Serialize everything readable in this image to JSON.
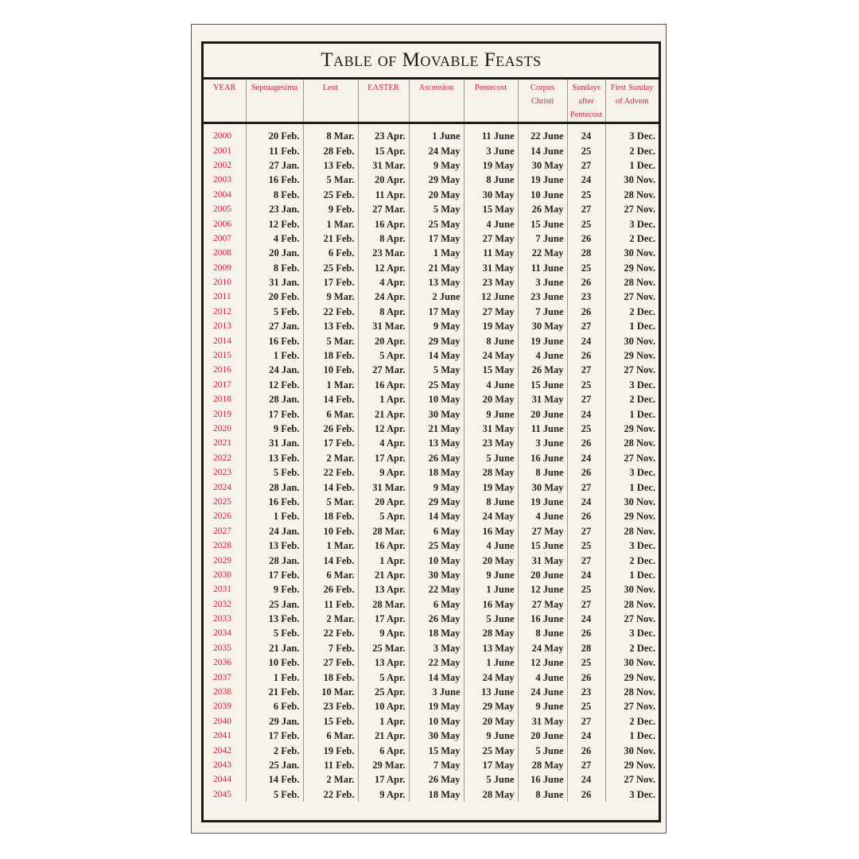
{
  "title": "Table of Movable Feasts",
  "colors": {
    "header_text": "#d6203a",
    "year_text": "#d6203a",
    "body_text": "#222222",
    "background": "#f7f3ea"
  },
  "columns": [
    "YEAR",
    "Septuagesima",
    "Lent",
    "EASTER",
    "Ascension",
    "Pentecost",
    "Corpus Christi",
    "Sundays after Pentecost",
    "First Sunday of Advent"
  ],
  "rows": [
    [
      "2000",
      "20 Feb.",
      "8 Mar.",
      "23 Apr.",
      "1 June",
      "11 June",
      "22 June",
      "24",
      "3 Dec."
    ],
    [
      "2001",
      "11 Feb.",
      "28 Feb.",
      "15 Apr.",
      "24 May",
      "3 June",
      "14 June",
      "25",
      "2 Dec."
    ],
    [
      "2002",
      "27 Jan.",
      "13 Feb.",
      "31 Mar.",
      "9 May",
      "19 May",
      "30 May",
      "27",
      "1 Dec."
    ],
    [
      "2003",
      "16 Feb.",
      "5 Mar.",
      "20 Apr.",
      "29 May",
      "8 June",
      "19 June",
      "24",
      "30 Nov."
    ],
    [
      "2004",
      "8 Feb.",
      "25 Feb.",
      "11 Apr.",
      "20 May",
      "30 May",
      "10 June",
      "25",
      "28 Nov."
    ],
    [
      "2005",
      "23 Jan.",
      "9 Feb.",
      "27 Mar.",
      "5 May",
      "15 May",
      "26 May",
      "27",
      "27 Nov."
    ],
    [
      "2006",
      "12 Feb.",
      "1 Mar.",
      "16 Apr.",
      "25 May",
      "4 June",
      "15 June",
      "25",
      "3 Dec."
    ],
    [
      "2007",
      "4 Feb.",
      "21 Feb.",
      "8 Apr.",
      "17 May",
      "27 May",
      "7 June",
      "26",
      "2 Dec."
    ],
    [
      "2008",
      "20 Jan.",
      "6 Feb.",
      "23 Mar.",
      "1 May",
      "11 May",
      "22 May",
      "28",
      "30 Nov."
    ],
    [
      "2009",
      "8 Feb.",
      "25 Feb.",
      "12 Apr.",
      "21 May",
      "31 May",
      "11 June",
      "25",
      "29 Nov."
    ],
    [
      "2010",
      "31 Jan.",
      "17 Feb.",
      "4 Apr.",
      "13 May",
      "23 May",
      "3 June",
      "26",
      "28 Nov."
    ],
    [
      "2011",
      "20 Feb.",
      "9 Mar.",
      "24 Apr.",
      "2 June",
      "12 June",
      "23 June",
      "23",
      "27 Nov."
    ],
    [
      "2012",
      "5 Feb.",
      "22 Feb.",
      "8 Apr.",
      "17 May",
      "27 May",
      "7 June",
      "26",
      "2 Dec."
    ],
    [
      "2013",
      "27 Jan.",
      "13 Feb.",
      "31 Mar.",
      "9 May",
      "19 May",
      "30 May",
      "27",
      "1 Dec."
    ],
    [
      "2014",
      "16 Feb.",
      "5 Mar.",
      "20 Apr.",
      "29 May",
      "8 June",
      "19 June",
      "24",
      "30 Nov."
    ],
    [
      "2015",
      "1 Feb.",
      "18 Feb.",
      "5 Apr.",
      "14 May",
      "24 May",
      "4 June",
      "26",
      "29 Nov."
    ],
    [
      "2016",
      "24 Jan.",
      "10 Feb.",
      "27 Mar.",
      "5 May",
      "15 May",
      "26 May",
      "27",
      "27 Nov."
    ],
    [
      "2017",
      "12 Feb.",
      "1 Mar.",
      "16 Apr.",
      "25 May",
      "4 June",
      "15 June",
      "25",
      "3 Dec."
    ],
    [
      "2018",
      "28 Jan.",
      "14 Feb.",
      "1 Apr.",
      "10 May",
      "20 May",
      "31 May",
      "27",
      "2 Dec."
    ],
    [
      "2019",
      "17 Feb.",
      "6 Mar.",
      "21 Apr.",
      "30 May",
      "9 June",
      "20 June",
      "24",
      "1 Dec."
    ],
    [
      "2020",
      "9 Feb.",
      "26 Feb.",
      "12 Apr.",
      "21 May",
      "31 May",
      "11 June",
      "25",
      "29 Nov."
    ],
    [
      "2021",
      "31 Jan.",
      "17 Feb.",
      "4 Apr.",
      "13 May",
      "23 May",
      "3 June",
      "26",
      "28 Nov."
    ],
    [
      "2022",
      "13 Feb.",
      "2 Mar.",
      "17 Apr.",
      "26 May",
      "5 June",
      "16 June",
      "24",
      "27 Nov."
    ],
    [
      "2023",
      "5 Feb.",
      "22 Feb.",
      "9 Apr.",
      "18 May",
      "28 May",
      "8 June",
      "26",
      "3 Dec."
    ],
    [
      "2024",
      "28 Jan.",
      "14 Feb.",
      "31 Mar.",
      "9 May",
      "19 May",
      "30 May",
      "27",
      "1 Dec."
    ],
    [
      "2025",
      "16 Feb.",
      "5 Mar.",
      "20 Apr.",
      "29 May",
      "8 June",
      "19 June",
      "24",
      "30 Nov."
    ],
    [
      "2026",
      "1 Feb.",
      "18 Feb.",
      "5 Apr.",
      "14 May",
      "24 May",
      "4 June",
      "26",
      "29 Nov."
    ],
    [
      "2027",
      "24 Jan.",
      "10 Feb.",
      "28 Mar.",
      "6 May",
      "16 May",
      "27 May",
      "27",
      "28 Nov."
    ],
    [
      "2028",
      "13 Feb.",
      "1 Mar.",
      "16 Apr.",
      "25 May",
      "4 June",
      "15 June",
      "25",
      "3 Dec."
    ],
    [
      "2029",
      "28 Jan.",
      "14 Feb.",
      "1 Apr.",
      "10 May",
      "20 May",
      "31 May",
      "27",
      "2 Dec."
    ],
    [
      "2030",
      "17 Feb.",
      "6 Mar.",
      "21 Apr.",
      "30 May",
      "9 June",
      "20 June",
      "24",
      "1 Dec."
    ],
    [
      "2031",
      "9 Feb.",
      "26 Feb.",
      "13 Apr.",
      "22 May",
      "1 June",
      "12 June",
      "25",
      "30 Nov."
    ],
    [
      "2032",
      "25 Jan.",
      "11 Feb.",
      "28 Mar.",
      "6 May",
      "16 May",
      "27 May",
      "27",
      "28 Nov."
    ],
    [
      "2033",
      "13 Feb.",
      "2 Mar.",
      "17 Apr.",
      "26 May",
      "5 June",
      "16 June",
      "24",
      "27 Nov."
    ],
    [
      "2034",
      "5 Feb.",
      "22 Feb.",
      "9 Apr.",
      "18 May",
      "28 May",
      "8 June",
      "26",
      "3 Dec."
    ],
    [
      "2035",
      "21 Jan.",
      "7 Feb.",
      "25 Mar.",
      "3 May",
      "13 May",
      "24 May",
      "28",
      "2 Dec."
    ],
    [
      "2036",
      "10 Feb.",
      "27 Feb.",
      "13 Apr.",
      "22 May",
      "1 June",
      "12 June",
      "25",
      "30 Nov."
    ],
    [
      "2037",
      "1 Feb.",
      "18 Feb.",
      "5 Apr.",
      "14 May",
      "24 May",
      "4 June",
      "26",
      "29 Nov."
    ],
    [
      "2038",
      "21 Feb.",
      "10 Mar.",
      "25 Apr.",
      "3 June",
      "13 June",
      "24 June",
      "23",
      "28 Nov."
    ],
    [
      "2039",
      "6 Feb.",
      "23 Feb.",
      "10 Apr.",
      "19 May",
      "29 May",
      "9 June",
      "25",
      "27 Nov."
    ],
    [
      "2040",
      "29 Jan.",
      "15 Feb.",
      "1 Apr.",
      "10 May",
      "20 May",
      "31 May",
      "27",
      "2 Dec."
    ],
    [
      "2041",
      "17 Feb.",
      "6 Mar.",
      "21 Apr.",
      "30 May",
      "9 June",
      "20 June",
      "24",
      "1 Dec."
    ],
    [
      "2042",
      "2 Feb.",
      "19 Feb.",
      "6 Apr.",
      "15 May",
      "25 May",
      "5 June",
      "26",
      "30 Nov."
    ],
    [
      "2043",
      "25 Jan.",
      "11 Feb.",
      "29 Mar.",
      "7 May",
      "17 May",
      "28 May",
      "27",
      "29 Nov."
    ],
    [
      "2044",
      "14 Feb.",
      "2 Mar.",
      "17 Apr.",
      "26 May",
      "5 June",
      "16 June",
      "24",
      "27 Nov."
    ],
    [
      "2045",
      "5 Feb.",
      "22 Feb.",
      "9 Apr.",
      "18 May",
      "28 May",
      "8 June",
      "26",
      "3 Dec."
    ]
  ]
}
